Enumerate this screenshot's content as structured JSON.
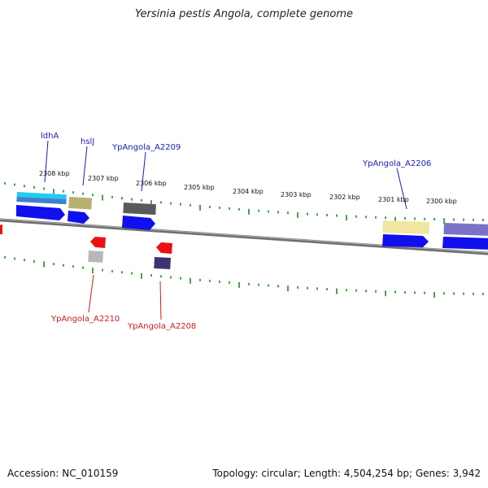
{
  "title": "Yersinia pestis Angola, complete genome",
  "accession": "Accession: NC_010159",
  "topology": "Topology: circular",
  "length": "Length: 4,504,254 bp",
  "genes_count": "Genes: 3,942",
  "colors": {
    "forward_label": "#1a1ab8",
    "reverse_label": "#d11a1a",
    "tick": "#1f8a1f",
    "backbone": "#777777"
  },
  "ticks": [
    {
      "label": "2308 kbp"
    },
    {
      "label": "2307 kbp"
    },
    {
      "label": "2306 kbp"
    },
    {
      "label": "2305 kbp"
    },
    {
      "label": "2304 kbp"
    },
    {
      "label": "2303 kbp"
    },
    {
      "label": "2302 kbp"
    },
    {
      "label": "2301 kbp"
    },
    {
      "label": "2300 kbp"
    }
  ],
  "gene_labels": [
    {
      "text": "ldhA",
      "strand": "forward"
    },
    {
      "text": "hslJ",
      "strand": "forward"
    },
    {
      "text": "YpAngola_A2209",
      "strand": "forward"
    },
    {
      "text": "YpAngola_A2206",
      "strand": "forward"
    },
    {
      "text": "YpAngola_A2210",
      "strand": "reverse"
    },
    {
      "text": "YpAngola_A2208",
      "strand": "reverse"
    }
  ]
}
